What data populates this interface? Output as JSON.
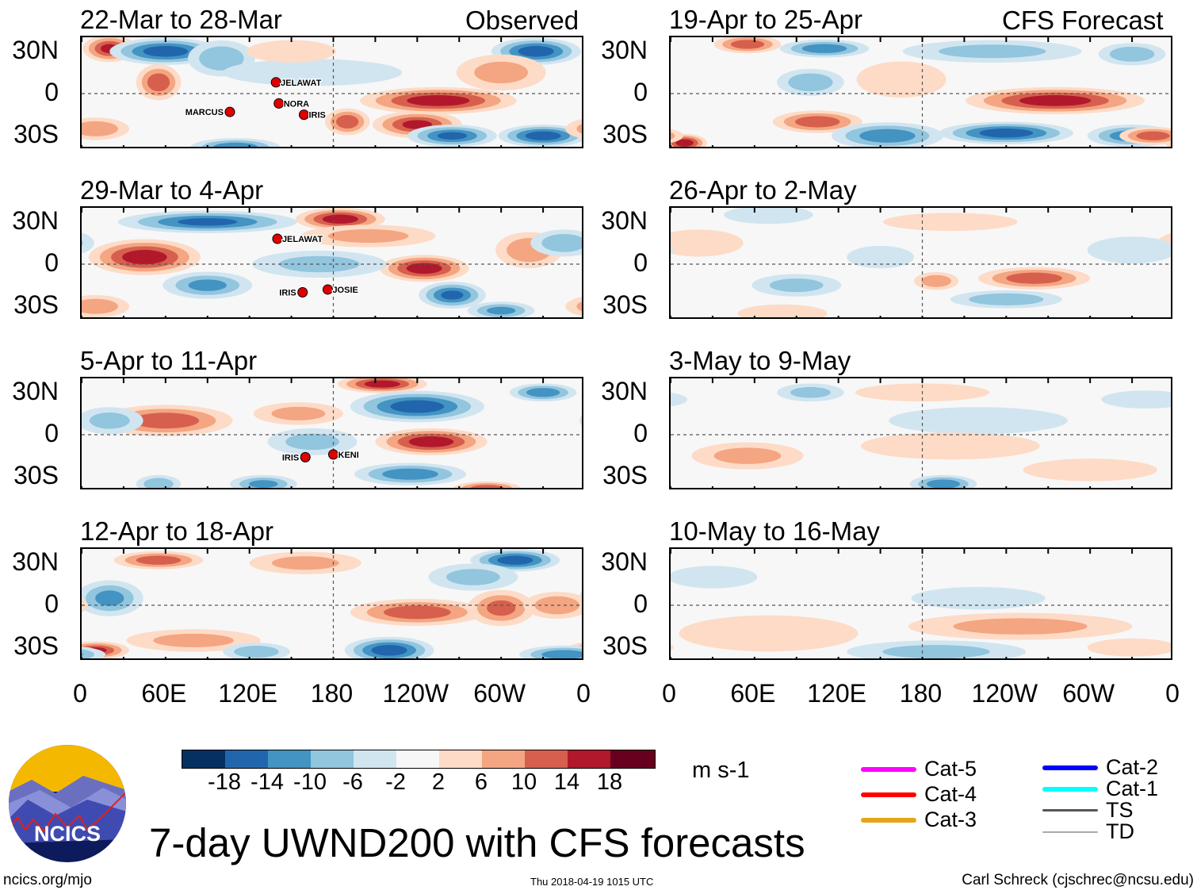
{
  "colorbar": {
    "colors": [
      "#053061",
      "#2166ac",
      "#4393c3",
      "#92c5de",
      "#d1e5f0",
      "#f7f7f7",
      "#fddbc7",
      "#f4a582",
      "#d6604d",
      "#b2182b",
      "#67001f"
    ],
    "ticks": [
      "-18",
      "-14",
      "-10",
      "-6",
      "-2",
      "2",
      "6",
      "10",
      "14",
      "18"
    ],
    "units": "m s-1"
  },
  "title": "7-day UWND200 with CFS forecasts",
  "footer": {
    "left": "ncics.org/mjo",
    "center": "Thu 2018-04-19 1015 UTC",
    "right": "Carl Schreck (cjschrec@ncsu.edu)"
  },
  "logo": {
    "text": "NCICS"
  },
  "column_labels": {
    "observed": "Observed",
    "forecast": "CFS Forecast"
  },
  "lat_labels": [
    "30N",
    "0",
    "30S"
  ],
  "lon_labels": [
    "0",
    "60E",
    "120E",
    "180",
    "120W",
    "60W",
    "0"
  ],
  "storm_legend": [
    {
      "label": "Cat-5",
      "color": "#ff00ff"
    },
    {
      "label": "Cat-4",
      "color": "#ff0000"
    },
    {
      "label": "Cat-3",
      "color": "#e8a317"
    },
    {
      "label": "Cat-2",
      "color": "#0000ff"
    },
    {
      "label": "Cat-1",
      "color": "#00ffff"
    },
    {
      "label": "TS",
      "color": "#555555"
    },
    {
      "label": "TD",
      "color": "#aaaaaa"
    }
  ],
  "panels": [
    {
      "title": "22-Mar to 28-Mar",
      "storms": [
        {
          "name": "JELAWAT",
          "lon": 139,
          "lat": 8
        },
        {
          "name": "NORA",
          "lon": 141,
          "lat": -7
        },
        {
          "name": "MARCUS",
          "lon": 106,
          "lat": -13
        },
        {
          "name": "IRIS",
          "lon": 159,
          "lat": -15
        }
      ],
      "features": [
        [
          20,
          32,
          16,
          12,
          6
        ],
        [
          60,
          30,
          -18,
          25,
          6
        ],
        [
          55,
          8,
          14,
          10,
          8
        ],
        [
          100,
          25,
          -10,
          15,
          8
        ],
        [
          255,
          -5,
          18,
          35,
          6
        ],
        [
          240,
          -22,
          16,
          20,
          6
        ],
        [
          265,
          -30,
          -16,
          20,
          5
        ],
        [
          190,
          -20,
          14,
          10,
          6
        ],
        [
          110,
          -38,
          -14,
          20,
          4
        ],
        [
          325,
          30,
          -18,
          20,
          6
        ],
        [
          330,
          -30,
          -18,
          20,
          5
        ],
        [
          165,
          15,
          -6,
          40,
          6
        ],
        [
          300,
          15,
          8,
          20,
          8
        ],
        [
          10,
          -25,
          10,
          15,
          5
        ],
        [
          150,
          30,
          6,
          20,
          5
        ]
      ]
    },
    {
      "title": "29-Mar to 4-Apr",
      "storms": [
        {
          "name": "JELAWAT",
          "lon": 140,
          "lat": 18
        },
        {
          "name": "IRIS",
          "lon": 158,
          "lat": -20
        },
        {
          "name": "JOSIE",
          "lon": 176,
          "lat": -18
        }
      ],
      "features": [
        [
          90,
          30,
          -16,
          40,
          5
        ],
        [
          185,
          32,
          18,
          20,
          5
        ],
        [
          45,
          5,
          18,
          25,
          8
        ],
        [
          90,
          -15,
          -12,
          20,
          6
        ],
        [
          245,
          -3,
          18,
          20,
          6
        ],
        [
          265,
          -22,
          -16,
          15,
          6
        ],
        [
          300,
          -33,
          -12,
          15,
          4
        ],
        [
          320,
          10,
          10,
          15,
          8
        ],
        [
          10,
          -30,
          10,
          15,
          5
        ],
        [
          170,
          0,
          -8,
          30,
          6
        ],
        [
          205,
          20,
          8,
          30,
          5
        ],
        [
          345,
          15,
          -10,
          15,
          6
        ]
      ]
    },
    {
      "title": "5-Apr to 11-Apr",
      "storms": [
        {
          "name": "IRIS",
          "lon": 160,
          "lat": -16
        },
        {
          "name": "KENI",
          "lon": 180,
          "lat": -14
        }
      ],
      "features": [
        [
          215,
          36,
          18,
          20,
          4
        ],
        [
          240,
          20,
          -18,
          30,
          7
        ],
        [
          250,
          -5,
          18,
          25,
          6
        ],
        [
          235,
          -28,
          -14,
          25,
          5
        ],
        [
          290,
          -38,
          14,
          15,
          3
        ],
        [
          60,
          10,
          14,
          30,
          7
        ],
        [
          330,
          30,
          -14,
          15,
          4
        ],
        [
          130,
          -35,
          -12,
          15,
          4
        ],
        [
          55,
          -35,
          -10,
          10,
          4
        ],
        [
          20,
          10,
          -8,
          15,
          6
        ],
        [
          155,
          15,
          8,
          20,
          5
        ],
        [
          165,
          -5,
          -8,
          20,
          6
        ]
      ]
    },
    {
      "title": "12-Apr to 18-Apr",
      "storms": [],
      "features": [
        [
          55,
          32,
          14,
          20,
          4
        ],
        [
          310,
          32,
          -18,
          20,
          5
        ],
        [
          220,
          -32,
          -18,
          20,
          6
        ],
        [
          240,
          -5,
          14,
          30,
          6
        ],
        [
          300,
          -2,
          12,
          15,
          8
        ],
        [
          20,
          5,
          -12,
          15,
          8
        ],
        [
          10,
          -32,
          16,
          15,
          4
        ],
        [
          80,
          -25,
          8,
          30,
          5
        ],
        [
          125,
          -33,
          -10,
          15,
          4
        ],
        [
          345,
          -35,
          -14,
          20,
          4
        ],
        [
          340,
          0,
          10,
          15,
          6
        ],
        [
          280,
          20,
          -8,
          20,
          6
        ],
        [
          160,
          30,
          8,
          25,
          5
        ]
      ]
    },
    {
      "title": "19-Apr to 25-Apr",
      "storms": [],
      "features": [
        [
          55,
          35,
          14,
          15,
          4
        ],
        [
          110,
          32,
          -14,
          20,
          4
        ],
        [
          100,
          8,
          -10,
          15,
          6
        ],
        [
          105,
          -20,
          14,
          20,
          5
        ],
        [
          155,
          -30,
          -14,
          25,
          6
        ],
        [
          275,
          -5,
          18,
          40,
          6
        ],
        [
          240,
          -28,
          -18,
          30,
          5
        ],
        [
          330,
          -30,
          -14,
          20,
          5
        ],
        [
          10,
          -35,
          18,
          10,
          4
        ],
        [
          345,
          -30,
          14,
          15,
          4
        ],
        [
          230,
          30,
          -8,
          40,
          5
        ],
        [
          330,
          28,
          -10,
          15,
          5
        ],
        [
          165,
          10,
          6,
          20,
          8
        ]
      ]
    },
    {
      "title": "26-Apr to 2-May",
      "storms": [],
      "features": [
        [
          260,
          -10,
          14,
          25,
          5
        ],
        [
          240,
          -25,
          -10,
          25,
          4
        ],
        [
          190,
          -12,
          10,
          10,
          4
        ],
        [
          90,
          -15,
          -8,
          20,
          5
        ],
        [
          150,
          5,
          -6,
          15,
          5
        ],
        [
          20,
          15,
          6,
          20,
          6
        ],
        [
          330,
          10,
          -6,
          20,
          6
        ],
        [
          70,
          35,
          -6,
          20,
          4
        ],
        [
          80,
          -35,
          6,
          20,
          4
        ],
        [
          200,
          30,
          6,
          30,
          4
        ]
      ]
    },
    {
      "title": "3-May to 9-May",
      "storms": [],
      "features": [
        [
          55,
          -15,
          8,
          25,
          6
        ],
        [
          100,
          30,
          -8,
          15,
          4
        ],
        [
          195,
          -35,
          -14,
          15,
          4
        ],
        [
          220,
          10,
          -4,
          40,
          6
        ],
        [
          200,
          -8,
          4,
          40,
          6
        ],
        [
          300,
          -25,
          6,
          30,
          5
        ],
        [
          180,
          30,
          4,
          30,
          4
        ],
        [
          340,
          25,
          -6,
          20,
          4
        ]
      ]
    },
    {
      "title": "10-May to 16-May",
      "storms": [],
      "features": [
        [
          70,
          -20,
          6,
          40,
          8
        ],
        [
          250,
          -15,
          8,
          50,
          6
        ],
        [
          190,
          -33,
          -8,
          40,
          5
        ],
        [
          220,
          5,
          -4,
          30,
          5
        ],
        [
          30,
          20,
          -4,
          20,
          5
        ],
        [
          330,
          -30,
          4,
          20,
          4
        ]
      ]
    }
  ]
}
